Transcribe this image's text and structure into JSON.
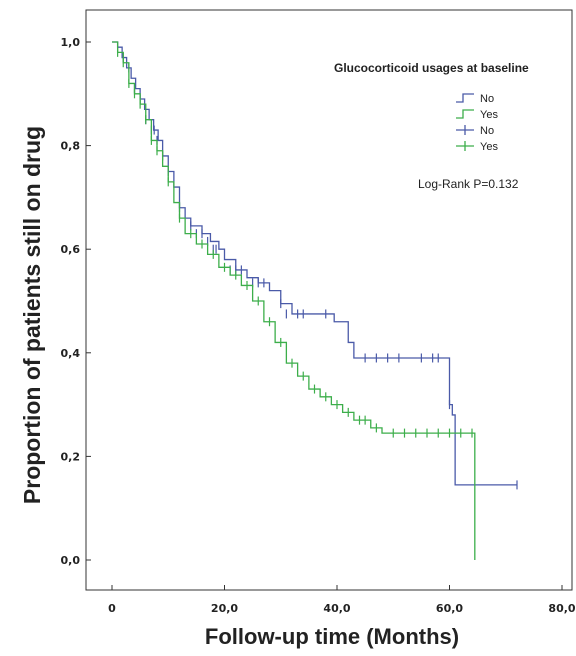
{
  "chart_data": {
    "type": "line",
    "subtype": "kaplan-meier",
    "xlabel": "Follow-up time (Months)",
    "ylabel": "Proportion of patients still on drug",
    "xlim": [
      0,
      80
    ],
    "ylim": [
      0,
      1
    ],
    "x_ticks": [
      "0",
      "20,0",
      "40,0",
      "60,0",
      "80,0"
    ],
    "x_tick_values": [
      0,
      20,
      40,
      60,
      80
    ],
    "y_ticks": [
      "0,0",
      "0,2",
      "0,4",
      "0,6",
      "0,8",
      "1,0"
    ],
    "y_tick_values": [
      0,
      0.2,
      0.4,
      0.6,
      0.8,
      1.0
    ],
    "legend": {
      "title": "Glucocorticoid usages at baseline",
      "placement": "top-right",
      "entries": [
        {
          "label": "No",
          "kind": "step",
          "color": "#4a5aa8"
        },
        {
          "label": "Yes",
          "kind": "step",
          "color": "#3cae4a"
        },
        {
          "label": "No",
          "kind": "censor",
          "color": "#4a5aa8"
        },
        {
          "label": "Yes",
          "kind": "censor",
          "color": "#3cae4a"
        }
      ]
    },
    "annotation": "Log-Rank P=0.132",
    "grid": false,
    "series": [
      {
        "name": "No",
        "color": "#4a5aa8",
        "steps": [
          [
            0,
            1.0
          ],
          [
            1,
            0.99
          ],
          [
            1.8,
            0.97
          ],
          [
            2.6,
            0.95
          ],
          [
            3.4,
            0.93
          ],
          [
            4.2,
            0.91
          ],
          [
            5,
            0.89
          ],
          [
            5.8,
            0.87
          ],
          [
            6.6,
            0.85
          ],
          [
            7.4,
            0.83
          ],
          [
            8.2,
            0.81
          ],
          [
            9,
            0.78
          ],
          [
            10,
            0.75
          ],
          [
            11,
            0.72
          ],
          [
            12,
            0.68
          ],
          [
            13,
            0.66
          ],
          [
            14,
            0.645
          ],
          [
            16,
            0.63
          ],
          [
            17.5,
            0.615
          ],
          [
            19,
            0.6
          ],
          [
            20,
            0.58
          ],
          [
            22,
            0.56
          ],
          [
            24,
            0.545
          ],
          [
            26,
            0.535
          ],
          [
            28,
            0.52
          ],
          [
            30,
            0.495
          ],
          [
            32,
            0.475
          ],
          [
            39.5,
            0.46
          ],
          [
            42,
            0.42
          ],
          [
            43,
            0.39
          ],
          [
            60,
            0.3
          ],
          [
            60.5,
            0.28
          ],
          [
            61,
            0.145
          ],
          [
            72,
            0.145
          ]
        ],
        "end_x": 72,
        "censored": [
          [
            2,
            0.97
          ],
          [
            3,
            0.95
          ],
          [
            4,
            0.91
          ],
          [
            5,
            0.89
          ],
          [
            6,
            0.85
          ],
          [
            7,
            0.83
          ],
          [
            7.5,
            0.83
          ],
          [
            8,
            0.81
          ],
          [
            9,
            0.78
          ],
          [
            10,
            0.75
          ],
          [
            12,
            0.68
          ],
          [
            14,
            0.645
          ],
          [
            15,
            0.63
          ],
          [
            16,
            0.63
          ],
          [
            17,
            0.615
          ],
          [
            18,
            0.6
          ],
          [
            18.5,
            0.6
          ],
          [
            21,
            0.56
          ],
          [
            22,
            0.56
          ],
          [
            23,
            0.56
          ],
          [
            25,
            0.535
          ],
          [
            26,
            0.535
          ],
          [
            27,
            0.535
          ],
          [
            30,
            0.495
          ],
          [
            31,
            0.475
          ],
          [
            33,
            0.475
          ],
          [
            34,
            0.475
          ],
          [
            38,
            0.475
          ],
          [
            45,
            0.39
          ],
          [
            47,
            0.39
          ],
          [
            49,
            0.39
          ],
          [
            51,
            0.39
          ],
          [
            55,
            0.39
          ],
          [
            57,
            0.39
          ],
          [
            58,
            0.39
          ],
          [
            60,
            0.3
          ],
          [
            72,
            0.145
          ]
        ]
      },
      {
        "name": "Yes",
        "color": "#3cae4a",
        "steps": [
          [
            0,
            1.0
          ],
          [
            1,
            0.98
          ],
          [
            2,
            0.96
          ],
          [
            3,
            0.92
          ],
          [
            4,
            0.9
          ],
          [
            5,
            0.88
          ],
          [
            6,
            0.85
          ],
          [
            7,
            0.81
          ],
          [
            8,
            0.79
          ],
          [
            9,
            0.76
          ],
          [
            10,
            0.73
          ],
          [
            11,
            0.69
          ],
          [
            12,
            0.66
          ],
          [
            13,
            0.63
          ],
          [
            15,
            0.61
          ],
          [
            17,
            0.59
          ],
          [
            19,
            0.565
          ],
          [
            21,
            0.55
          ],
          [
            23,
            0.53
          ],
          [
            25,
            0.5
          ],
          [
            27,
            0.46
          ],
          [
            29,
            0.42
          ],
          [
            31,
            0.38
          ],
          [
            33,
            0.355
          ],
          [
            35,
            0.33
          ],
          [
            37,
            0.315
          ],
          [
            39,
            0.3
          ],
          [
            41,
            0.285
          ],
          [
            43,
            0.27
          ],
          [
            46,
            0.255
          ],
          [
            48,
            0.245
          ],
          [
            64.5,
            0.0
          ]
        ],
        "end_x": 64.5,
        "censored": [
          [
            1,
            0.98
          ],
          [
            2,
            0.96
          ],
          [
            3,
            0.92
          ],
          [
            4,
            0.9
          ],
          [
            5,
            0.88
          ],
          [
            6,
            0.85
          ],
          [
            7,
            0.81
          ],
          [
            8,
            0.79
          ],
          [
            10,
            0.73
          ],
          [
            12,
            0.66
          ],
          [
            14,
            0.63
          ],
          [
            16,
            0.61
          ],
          [
            18,
            0.59
          ],
          [
            20,
            0.565
          ],
          [
            22,
            0.55
          ],
          [
            24,
            0.53
          ],
          [
            26,
            0.5
          ],
          [
            28,
            0.46
          ],
          [
            30,
            0.42
          ],
          [
            32,
            0.38
          ],
          [
            34,
            0.355
          ],
          [
            36,
            0.33
          ],
          [
            38,
            0.315
          ],
          [
            40,
            0.3
          ],
          [
            42,
            0.285
          ],
          [
            44,
            0.27
          ],
          [
            45,
            0.27
          ],
          [
            47,
            0.255
          ],
          [
            50,
            0.245
          ],
          [
            52,
            0.245
          ],
          [
            54,
            0.245
          ],
          [
            56,
            0.245
          ],
          [
            58,
            0.245
          ],
          [
            60,
            0.245
          ],
          [
            62,
            0.245
          ],
          [
            64,
            0.245
          ]
        ]
      }
    ]
  }
}
